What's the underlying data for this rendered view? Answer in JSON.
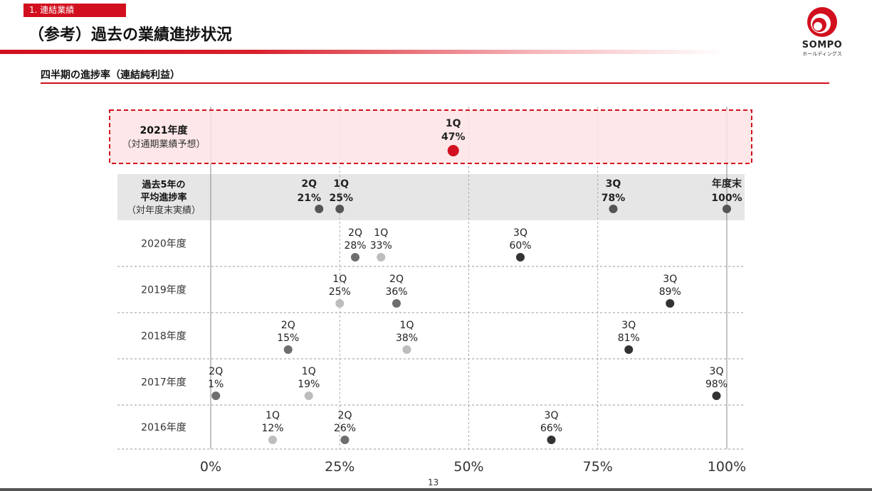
{
  "header": {
    "section_label": "1. 連結業績",
    "title": "（参考）過去の業績進捗状況",
    "subtitle": "四半期の進捗率（連結純利益）"
  },
  "logo": {
    "name": "SOMPO",
    "sub": "ホールディングス"
  },
  "page_number": "13",
  "colors": {
    "accent": "#d20f1e",
    "highlight_fill": "#fde3e4",
    "average_band": "#e6e6e6",
    "q1": "#bdbdbd",
    "q2": "#6e6e6e",
    "q3": "#333333",
    "average_dot": "#555555"
  },
  "chart_data": {
    "type": "scatter",
    "title": "四半期の進捗率（連結純利益）",
    "x_ticks": [
      "0%",
      "25%",
      "50%",
      "75%",
      "100%"
    ],
    "xlim": [
      0,
      100
    ],
    "grid": true,
    "rows": [
      {
        "name": "2021年度",
        "sub": "（対通期業績予想）",
        "style": "highlight",
        "points": [
          {
            "q": "1Q",
            "label": "47%",
            "x": 47
          }
        ]
      },
      {
        "name": "過去5年の",
        "name2": "平均進捗率",
        "sub": "（対年度末実績）",
        "style": "average",
        "points": [
          {
            "q": "2Q",
            "label": "21%",
            "x": 21
          },
          {
            "q": "1Q",
            "label": "25%",
            "x": 25
          },
          {
            "q": "3Q",
            "label": "78%",
            "x": 78
          },
          {
            "q": "年度末",
            "label": "100%",
            "x": 100
          }
        ]
      },
      {
        "name": "2020年度",
        "style": "year",
        "points": [
          {
            "q": "2Q",
            "label": "28%",
            "x": 28
          },
          {
            "q": "1Q",
            "label": "33%",
            "x": 33
          },
          {
            "q": "3Q",
            "label": "60%",
            "x": 60
          }
        ]
      },
      {
        "name": "2019年度",
        "style": "year",
        "points": [
          {
            "q": "1Q",
            "label": "25%",
            "x": 25
          },
          {
            "q": "2Q",
            "label": "36%",
            "x": 36
          },
          {
            "q": "3Q",
            "label": "89%",
            "x": 89
          }
        ]
      },
      {
        "name": "2018年度",
        "style": "year",
        "points": [
          {
            "q": "2Q",
            "label": "15%",
            "x": 15
          },
          {
            "q": "1Q",
            "label": "38%",
            "x": 38
          },
          {
            "q": "3Q",
            "label": "81%",
            "x": 81
          }
        ]
      },
      {
        "name": "2017年度",
        "style": "year",
        "points": [
          {
            "q": "2Q",
            "label": "1%",
            "x": 1
          },
          {
            "q": "1Q",
            "label": "19%",
            "x": 19
          },
          {
            "q": "3Q",
            "label": "98%",
            "x": 98
          }
        ]
      },
      {
        "name": "2016年度",
        "style": "year",
        "points": [
          {
            "q": "1Q",
            "label": "12%",
            "x": 12
          },
          {
            "q": "2Q",
            "label": "26%",
            "x": 26
          },
          {
            "q": "3Q",
            "label": "66%",
            "x": 66
          }
        ]
      }
    ]
  }
}
